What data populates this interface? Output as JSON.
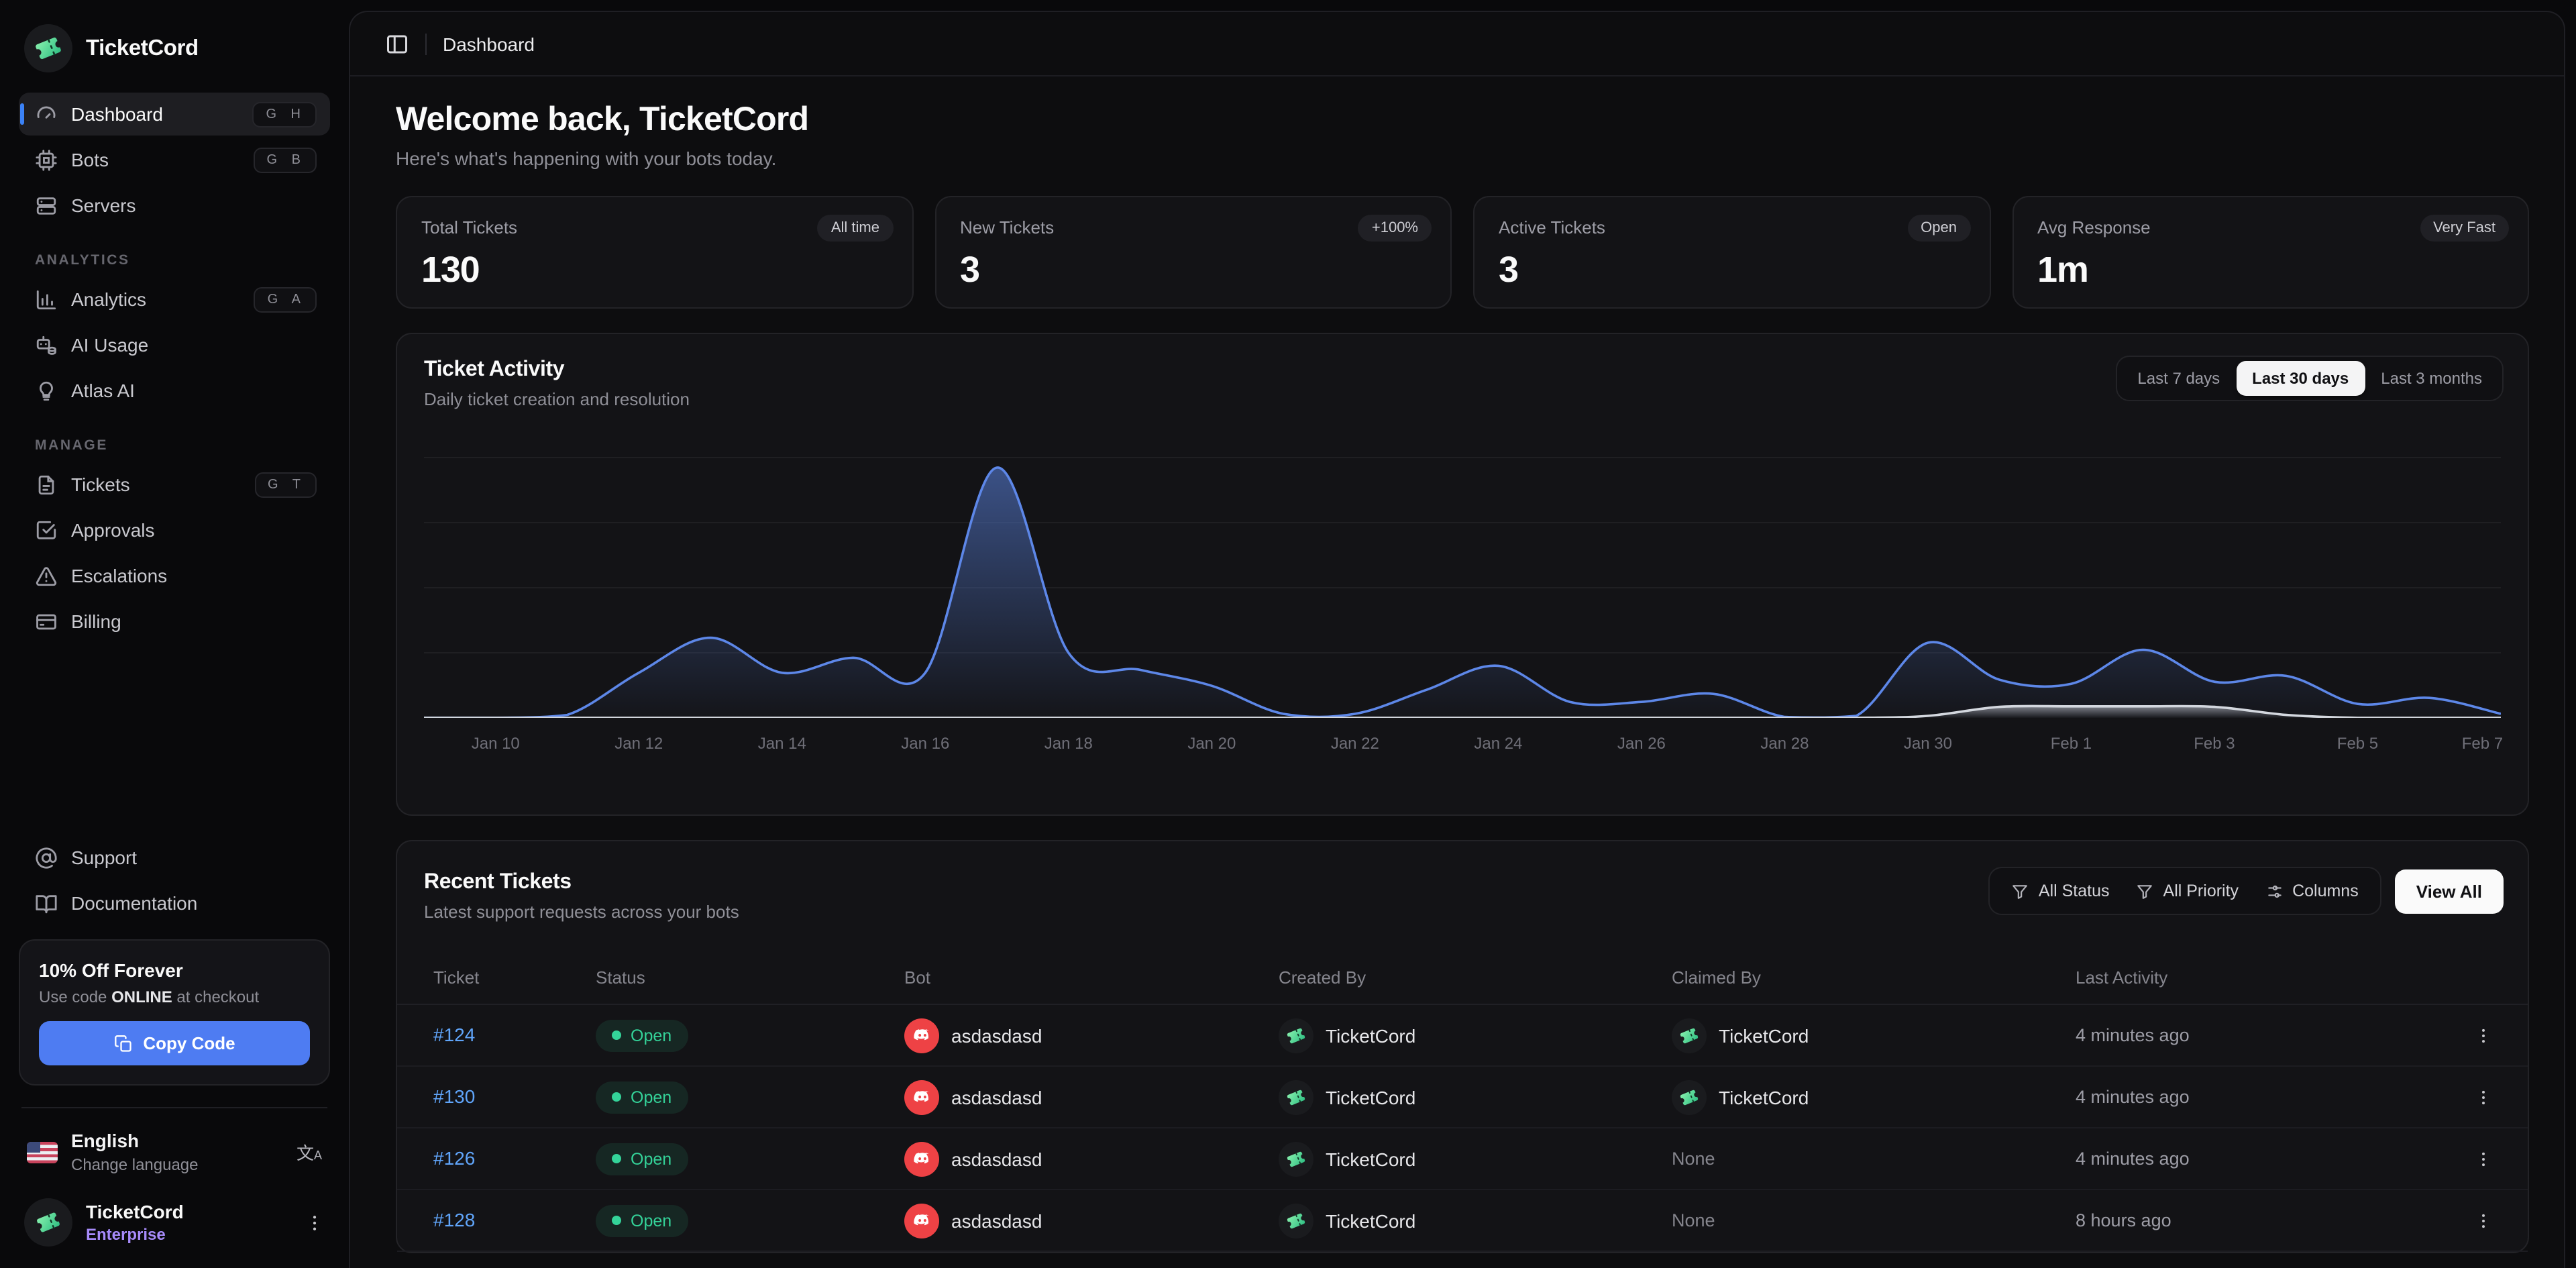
{
  "app": {
    "name": "TicketCord"
  },
  "header": {
    "breadcrumb": "Dashboard"
  },
  "welcome": {
    "title": "Welcome back, TicketCord",
    "subtitle": "Here's what's happening with your bots today."
  },
  "stats": [
    {
      "label": "Total Tickets",
      "value": "130",
      "badge": "All time"
    },
    {
      "label": "New Tickets",
      "value": "3",
      "badge": "+100%"
    },
    {
      "label": "Active Tickets",
      "value": "3",
      "badge": "Open"
    },
    {
      "label": "Avg Response",
      "value": "1m",
      "badge": "Very Fast"
    }
  ],
  "sidebar": {
    "sections": [
      {
        "label": "",
        "items": [
          {
            "label": "Dashboard",
            "kbd": "G H",
            "icon": "gauge-icon",
            "active": true
          },
          {
            "label": "Bots",
            "kbd": "G B",
            "icon": "cpu-icon"
          },
          {
            "label": "Servers",
            "kbd": "",
            "icon": "server-icon"
          }
        ]
      },
      {
        "label": "ANALYTICS",
        "items": [
          {
            "label": "Analytics",
            "kbd": "G A",
            "icon": "bar-chart-icon"
          },
          {
            "label": "AI Usage",
            "kbd": "",
            "icon": "bot-coins-icon"
          },
          {
            "label": "Atlas AI",
            "kbd": "",
            "icon": "lightbulb-icon"
          }
        ]
      },
      {
        "label": "MANAGE",
        "items": [
          {
            "label": "Tickets",
            "kbd": "G T",
            "icon": "file-text-icon"
          },
          {
            "label": "Approvals",
            "kbd": "",
            "icon": "check-square-icon"
          },
          {
            "label": "Escalations",
            "kbd": "",
            "icon": "alert-triangle-icon"
          },
          {
            "label": "Billing",
            "kbd": "",
            "icon": "credit-card-icon"
          }
        ]
      }
    ],
    "footer_links": [
      {
        "label": "Support",
        "icon": "at-sign-icon"
      },
      {
        "label": "Documentation",
        "icon": "book-open-icon"
      }
    ],
    "promo": {
      "title": "10% Off Forever",
      "body_prefix": "Use code ",
      "code": "ONLINE",
      "body_suffix": " at checkout",
      "button": "Copy Code"
    },
    "language": {
      "name": "English",
      "hint": "Change language"
    },
    "account": {
      "name": "TicketCord",
      "plan": "Enterprise"
    }
  },
  "activity": {
    "title": "Ticket Activity",
    "subtitle": "Daily ticket creation and resolution",
    "ranges": [
      "Last 7 days",
      "Last 30 days",
      "Last 3 months"
    ],
    "active_range": "Last 30 days"
  },
  "chart_data": {
    "type": "area",
    "title": "Ticket Activity",
    "xlabel": "",
    "ylabel": "",
    "ylim": [
      0,
      26
    ],
    "grid": true,
    "legend": false,
    "x": [
      "Jan 9",
      "Jan 10",
      "Jan 11",
      "Jan 12",
      "Jan 13",
      "Jan 14",
      "Jan 15",
      "Jan 16",
      "Jan 17",
      "Jan 18",
      "Jan 19",
      "Jan 20",
      "Jan 21",
      "Jan 22",
      "Jan 23",
      "Jan 24",
      "Jan 25",
      "Jan 26",
      "Jan 27",
      "Jan 28",
      "Jan 29",
      "Jan 30",
      "Jan 31",
      "Feb 1",
      "Feb 2",
      "Feb 3",
      "Feb 4",
      "Feb 5",
      "Feb 6",
      "Feb 7"
    ],
    "series": [
      {
        "name": "Created",
        "color": "#5d87e8",
        "fill_top": "rgba(76,108,182,0.70)",
        "fill_bottom": "rgba(76,108,182,0.02)",
        "values": [
          0,
          0,
          0.3,
          4.5,
          8,
          4.5,
          6,
          4.5,
          25,
          6.5,
          4.8,
          3.2,
          0.4,
          0.4,
          2.8,
          5.2,
          1.6,
          1.6,
          2.4,
          0.1,
          0.2,
          7.5,
          3.8,
          3.4,
          6.8,
          3.6,
          4.2,
          1.4,
          2.0,
          0.4
        ]
      },
      {
        "name": "Resolved",
        "color": "#d3d7de",
        "fill_top": "rgba(214,220,230,0.55)",
        "fill_bottom": "rgba(214,220,230,0.02)",
        "values": [
          0,
          0,
          0,
          0,
          0,
          0,
          0,
          0,
          0,
          0,
          0,
          0,
          0,
          0,
          0,
          0,
          0,
          0,
          0,
          0,
          0,
          0.2,
          1.1,
          1.15,
          1.15,
          1.1,
          0.3,
          0,
          0,
          0
        ]
      }
    ],
    "tick_labels": [
      "Jan 10",
      "Jan 12",
      "Jan 14",
      "Jan 16",
      "Jan 18",
      "Jan 20",
      "Jan 22",
      "Jan 24",
      "Jan 26",
      "Jan 28",
      "Jan 30",
      "Feb 1",
      "Feb 3",
      "Feb 5",
      "Feb 7"
    ],
    "tick_indices": [
      1,
      3,
      5,
      7,
      9,
      11,
      13,
      15,
      17,
      19,
      21,
      23,
      25,
      27,
      29
    ]
  },
  "recent": {
    "title": "Recent Tickets",
    "subtitle": "Latest support requests across your bots",
    "filters": [
      "All Status",
      "All Priority",
      "Columns"
    ],
    "view_all": "View All",
    "columns": [
      "Ticket",
      "Status",
      "Bot",
      "Created By",
      "Claimed By",
      "Last Activity"
    ],
    "rows": [
      {
        "id": "#124",
        "status": "Open",
        "bot": "asdasdasd",
        "created_by": "TicketCord",
        "claimed_by": "TicketCord",
        "activity": "4 minutes ago"
      },
      {
        "id": "#130",
        "status": "Open",
        "bot": "asdasdasd",
        "created_by": "TicketCord",
        "claimed_by": "TicketCord",
        "activity": "4 minutes ago"
      },
      {
        "id": "#126",
        "status": "Open",
        "bot": "asdasdasd",
        "created_by": "TicketCord",
        "claimed_by": "None",
        "activity": "4 minutes ago"
      },
      {
        "id": "#128",
        "status": "Open",
        "bot": "asdasdasd",
        "created_by": "TicketCord",
        "claimed_by": "None",
        "activity": "8 hours ago"
      }
    ]
  }
}
